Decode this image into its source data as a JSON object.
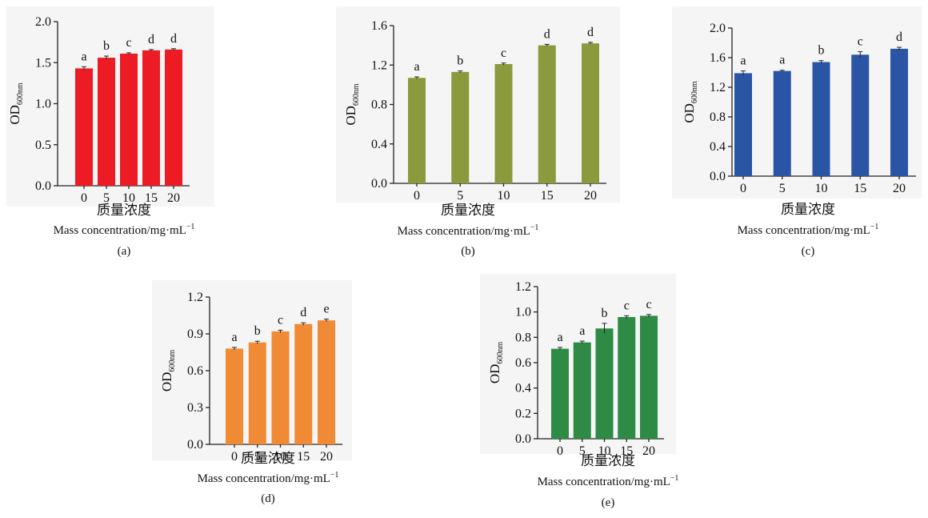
{
  "chart_data": [
    {
      "type": "bar",
      "panel": "(a)",
      "ylabel": "OD",
      "ylabel_sub": "600nm",
      "xlabel_cn": "质量浓度",
      "xlabel_en": "Mass concentration/mg·mL",
      "xlabel_en_sup": "−1",
      "categories": [
        "0",
        "5",
        "10",
        "15",
        "20"
      ],
      "values": [
        1.43,
        1.56,
        1.61,
        1.65,
        1.66
      ],
      "errors": [
        0.02,
        0.02,
        0.01,
        0.01,
        0.01
      ],
      "annotations": [
        "a",
        "b",
        "c",
        "d",
        "d"
      ],
      "color": "#ed1c24",
      "ylim": [
        0,
        2.0
      ],
      "yticks": [
        {
          "value": 0,
          "label": "0.0"
        },
        {
          "value": 0.5,
          "label": "0.5"
        },
        {
          "value": 1,
          "label": "1.0"
        },
        {
          "value": 1.5,
          "label": "1.5"
        },
        {
          "value": 2,
          "label": "2.0"
        }
      ]
    },
    {
      "type": "bar",
      "panel": "(b)",
      "ylabel": "OD",
      "ylabel_sub": "600nm",
      "xlabel_cn": "质量浓度",
      "xlabel_en": "Mass concentration/mg·mL",
      "xlabel_en_sup": "−1",
      "categories": [
        "0",
        "5",
        "10",
        "15",
        "20"
      ],
      "values": [
        1.07,
        1.13,
        1.21,
        1.4,
        1.42
      ],
      "errors": [
        0.01,
        0.01,
        0.01,
        0.01,
        0.01
      ],
      "annotations": [
        "a",
        "b",
        "c",
        "d",
        "d"
      ],
      "color": "#8b9a3c",
      "ylim": [
        0,
        1.6
      ],
      "yticks": [
        {
          "value": 0,
          "label": "0.0"
        },
        {
          "value": 0.4,
          "label": "0.4"
        },
        {
          "value": 0.8,
          "label": "0.8"
        },
        {
          "value": 1.2,
          "label": "1.2"
        },
        {
          "value": 1.6,
          "label": "1.6"
        }
      ]
    },
    {
      "type": "bar",
      "panel": "(c)",
      "ylabel": "OD",
      "ylabel_sub": "600nm",
      "xlabel_cn": "质量浓度",
      "xlabel_en": "Mass concentration/mg·mL",
      "xlabel_en_sup": "−1",
      "categories": [
        "0",
        "5",
        "10",
        "15",
        "20"
      ],
      "values": [
        1.39,
        1.42,
        1.54,
        1.64,
        1.72
      ],
      "errors": [
        0.03,
        0.01,
        0.02,
        0.04,
        0.02
      ],
      "annotations": [
        "a",
        "a",
        "b",
        "c",
        "d"
      ],
      "color": "#2a55a5",
      "ylim": [
        0,
        2.0
      ],
      "yticks": [
        {
          "value": 0,
          "label": "0.0"
        },
        {
          "value": 0.4,
          "label": "0.4"
        },
        {
          "value": 0.8,
          "label": "0.8"
        },
        {
          "value": 1.2,
          "label": "1.2"
        },
        {
          "value": 1.6,
          "label": "1.6"
        },
        {
          "value": 2,
          "label": "2.0"
        }
      ]
    },
    {
      "type": "bar",
      "panel": "(d)",
      "ylabel": "OD",
      "ylabel_sub": "600nm",
      "xlabel_cn": "质量浓度",
      "xlabel_en": "Mass concentration/mg·mL",
      "xlabel_en_sup": "−1",
      "categories": [
        "0",
        "5",
        "10",
        "15",
        "20"
      ],
      "values": [
        0.78,
        0.83,
        0.92,
        0.98,
        1.01
      ],
      "errors": [
        0.01,
        0.01,
        0.01,
        0.01,
        0.01
      ],
      "annotations": [
        "a",
        "b",
        "c",
        "d",
        "e"
      ],
      "color": "#f08a34",
      "ylim": [
        0,
        1.2
      ],
      "yticks": [
        {
          "value": 0,
          "label": "0.0"
        },
        {
          "value": 0.3,
          "label": "0.3"
        },
        {
          "value": 0.6,
          "label": "0.6"
        },
        {
          "value": 0.9,
          "label": "0.9"
        },
        {
          "value": 1.2,
          "label": "1.2"
        }
      ]
    },
    {
      "type": "bar",
      "panel": "(e)",
      "ylabel": "OD",
      "ylabel_sub": "600nm",
      "xlabel_cn": "质量浓度",
      "xlabel_en": "Mass concentration/mg·mL",
      "xlabel_en_sup": "−1",
      "categories": [
        "0",
        "5",
        "10",
        "15",
        "20"
      ],
      "values": [
        0.71,
        0.76,
        0.87,
        0.96,
        0.97
      ],
      "errors": [
        0.01,
        0.01,
        0.04,
        0.01,
        0.01
      ],
      "annotations": [
        "a",
        "a",
        "b",
        "c",
        "c"
      ],
      "color": "#2e8b45",
      "ylim": [
        0,
        1.2
      ],
      "yticks": [
        {
          "value": 0,
          "label": "0.0"
        },
        {
          "value": 0.2,
          "label": "0.2"
        },
        {
          "value": 0.4,
          "label": "0.4"
        },
        {
          "value": 0.6,
          "label": "0.6"
        },
        {
          "value": 0.8,
          "label": "0.8"
        },
        {
          "value": 1,
          "label": "1.0"
        },
        {
          "value": 1.2,
          "label": "1.2"
        }
      ]
    }
  ]
}
